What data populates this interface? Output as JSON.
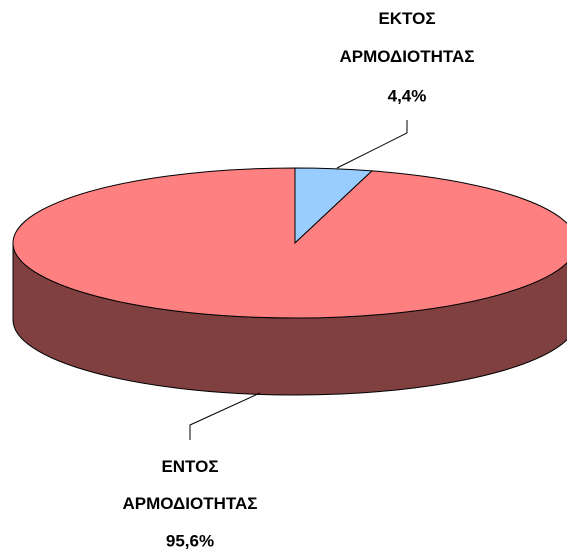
{
  "chart_data": {
    "type": "pie",
    "categories": [
      "ΕΚΤΟΣ ΑΡΜΟΔΙΟΤΗΤΑΣ",
      "ΕΝΤΟΣ ΑΡΜΟΔΙΟΤΗΤΑΣ"
    ],
    "values": [
      4.4,
      95.6
    ],
    "value_labels": [
      "4,4%",
      "95,6%"
    ],
    "colors": [
      "#99ccff",
      "#ff8080"
    ],
    "side_colors": [
      "#4d7a99",
      "#804040"
    ]
  }
}
